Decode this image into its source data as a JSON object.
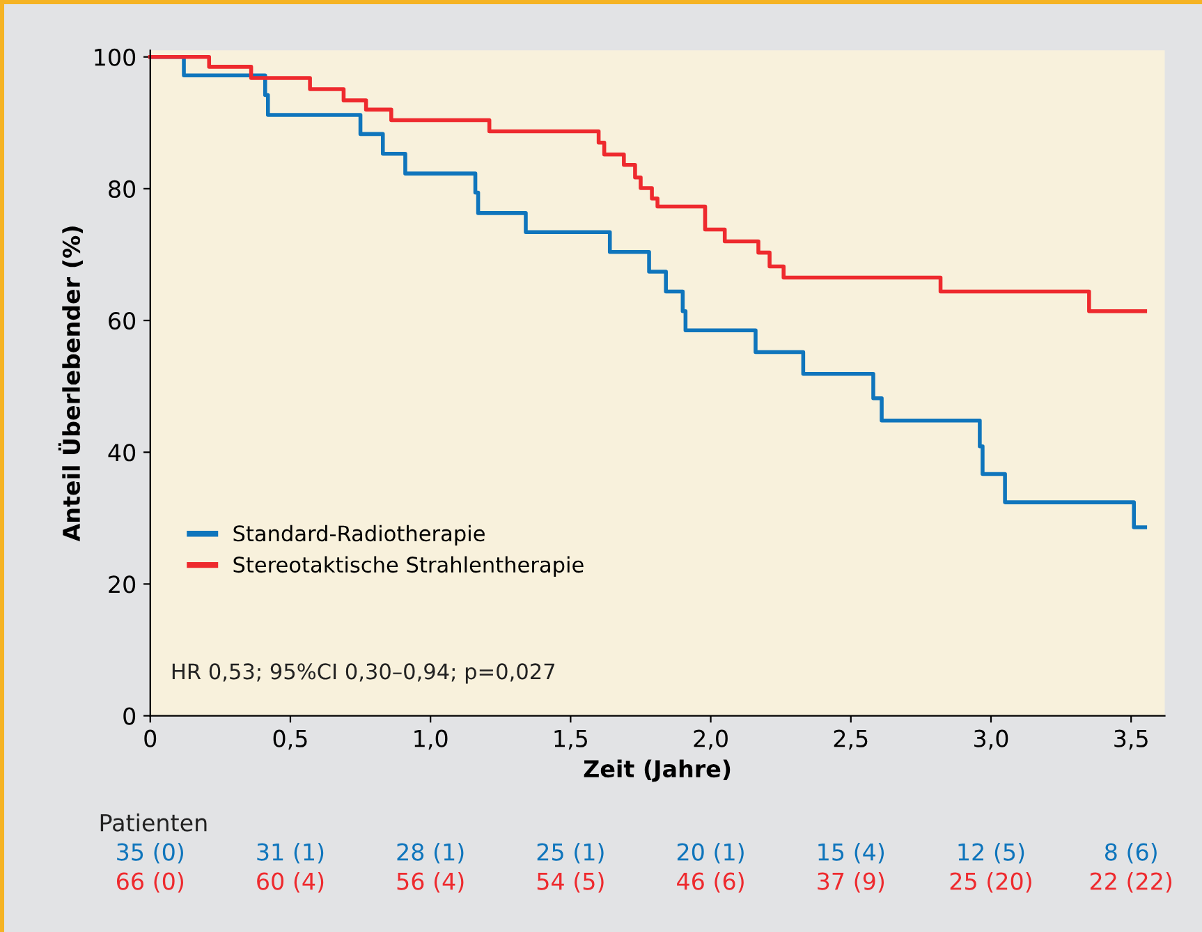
{
  "chart_data": {
    "type": "step",
    "xlabel": "Zeit (Jahre)",
    "ylabel": "Anteil Überlebender (%)",
    "xlim": [
      0,
      3.62
    ],
    "ylim": [
      0,
      101
    ],
    "xticks": [
      0,
      {
        "value": 0.5,
        "label": "0,5"
      },
      {
        "value": 1.0,
        "label": "1,0"
      },
      {
        "value": 1.5,
        "label": "1,5"
      },
      {
        "value": 2.0,
        "label": "2,0"
      },
      {
        "value": 2.5,
        "label": "2,5"
      },
      {
        "value": 3.0,
        "label": "3,0"
      },
      {
        "value": 3.5,
        "label": "3,5"
      }
    ],
    "yticks": [
      0,
      20,
      40,
      60,
      80,
      100
    ],
    "grid": false,
    "legend": "bottom left",
    "line_style": "solid",
    "marker": "none",
    "series": [
      {
        "name": "Standard-Radiotherapie",
        "color": "#0f75bc",
        "x": [
          0,
          0.12,
          0.41,
          0.42,
          0.75,
          0.83,
          0.91,
          1.16,
          1.17,
          1.34,
          1.64,
          1.78,
          1.84,
          1.9,
          1.91,
          2.16,
          2.33,
          2.58,
          2.61,
          2.96,
          2.97,
          3.05,
          3.51,
          3.55
        ],
        "values": [
          100,
          97.2,
          94.2,
          91.2,
          88.3,
          85.3,
          82.3,
          79.4,
          76.3,
          73.4,
          70.4,
          67.4,
          64.4,
          61.4,
          58.5,
          55.2,
          51.9,
          48.2,
          44.8,
          40.9,
          36.7,
          32.4,
          28.6,
          28.6
        ]
      },
      {
        "name": "Stereotaktische Strahlentherapie",
        "color": "#ee2a2e",
        "x": [
          0,
          0.21,
          0.36,
          0.57,
          0.69,
          0.77,
          0.86,
          1.21,
          1.6,
          1.62,
          1.69,
          1.73,
          1.75,
          1.79,
          1.81,
          1.98,
          2.05,
          2.17,
          2.21,
          2.26,
          2.82,
          3.35,
          3.55
        ],
        "values": [
          100,
          98.5,
          96.8,
          95.1,
          93.4,
          92.0,
          90.4,
          88.7,
          87.0,
          85.2,
          83.6,
          81.7,
          80.1,
          78.5,
          77.3,
          73.8,
          72.0,
          70.3,
          68.2,
          66.5,
          64.4,
          61.4,
          61.4
        ]
      }
    ],
    "annotations": [
      "HR 0,53; 95%CI 0,30–0,94; p=0,027",
      "Patienten",
      "35 (0)",
      "31 (1)",
      "28 (1)",
      "25 (1)",
      "20 (1)",
      "15 (4)",
      "12 (5)",
      "8 (6)",
      "66 (0)",
      "60 (4)",
      "56 (4)",
      "54 (5)",
      "46 (6)",
      "37 (9)",
      "25 (20)",
      "22 (22)"
    ]
  }
}
